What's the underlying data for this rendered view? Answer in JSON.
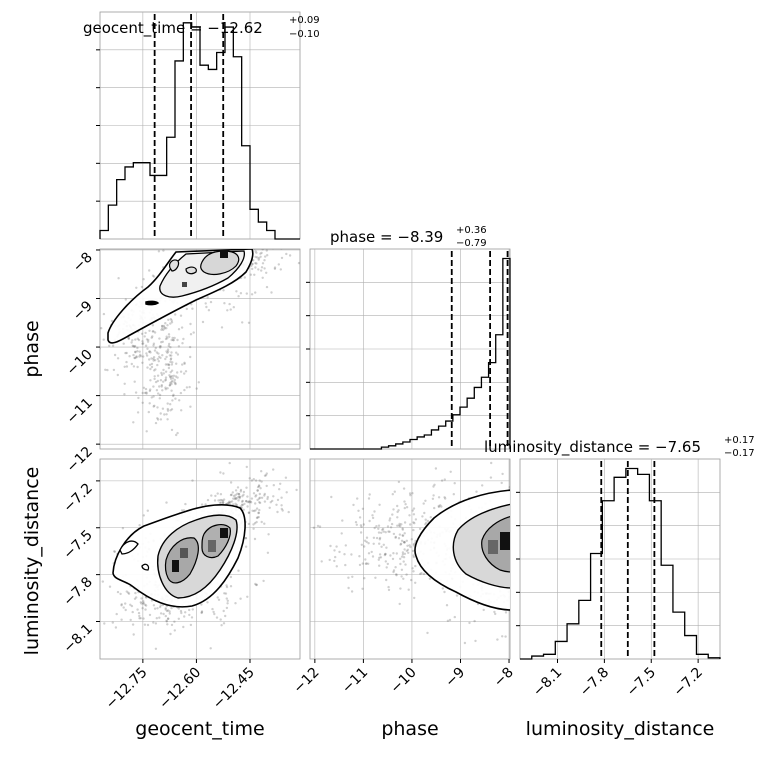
{
  "chart_data": {
    "type": "corner",
    "parameters": [
      "geocent_time",
      "phase",
      "luminosity_distance"
    ],
    "grid": true,
    "diagonal": [
      {
        "parameter": "geocent_time",
        "title_prefix": "geocent_time = ",
        "median": "−12.62",
        "upper": "+0.09",
        "lower": "−0.10",
        "quantile_lines": [
          -12.717,
          -12.615,
          -12.525
        ],
        "range": [
          -12.87,
          -12.31
        ],
        "hist_bins": [
          0.02,
          0.08,
          0.14,
          0.17,
          0.18,
          0.18,
          0.15,
          0.15,
          0.24,
          0.42,
          0.51,
          0.5,
          0.41,
          0.4,
          0.44,
          0.5,
          0.43,
          0.22,
          0.07,
          0.04,
          0.02,
          0.0,
          0.0,
          0.0
        ]
      },
      {
        "parameter": "phase",
        "title_prefix": "phase = ",
        "median": "−8.39",
        "upper": "+0.36",
        "lower": "−0.79",
        "quantile_lines": [
          -9.18,
          -8.39,
          -8.03
        ],
        "range": [
          -12.1,
          -7.98
        ],
        "hist_bins": [
          0.0,
          0.0,
          0.0,
          0.0,
          0.0,
          0.0,
          0.0,
          0.0,
          0.0,
          0.0,
          0.003,
          0.005,
          0.008,
          0.011,
          0.015,
          0.019,
          0.022,
          0.03,
          0.036,
          0.044,
          0.054,
          0.066,
          0.08,
          0.097,
          0.113,
          0.136,
          0.18,
          0.3
        ]
      },
      {
        "parameter": "luminosity_distance",
        "title_prefix": "luminosity_distance = ",
        "median": "−7.65",
        "upper": "+0.17",
        "lower": "−0.17",
        "quantile_lines": [
          -7.82,
          -7.65,
          -7.48
        ],
        "range": [
          -8.34,
          -7.06
        ],
        "hist_bins": [
          0.0,
          0.005,
          0.008,
          0.03,
          0.06,
          0.1,
          0.18,
          0.27,
          0.31,
          0.325,
          0.315,
          0.27,
          0.16,
          0.08,
          0.04,
          0.008,
          0.002
        ]
      }
    ],
    "ticks": {
      "geocent_time": [
        "−12.75",
        "−12.60",
        "−12.45"
      ],
      "geocent_time_values": [
        -12.75,
        -12.6,
        -12.45
      ],
      "phase": [
        "−12",
        "−11",
        "−10",
        "−9",
        "−8"
      ],
      "phase_values": [
        -12,
        -11,
        -10,
        -9,
        -8
      ],
      "luminosity_distance": [
        "−8.1",
        "−7.8",
        "−7.5",
        "−7.2"
      ],
      "luminosity_distance_values": [
        -8.1,
        -7.8,
        -7.5,
        -7.2
      ]
    },
    "axis_labels": {
      "x": [
        "geocent_time",
        "phase",
        "luminosity_distance"
      ],
      "y": [
        "phase",
        "luminosity_distance"
      ]
    }
  }
}
